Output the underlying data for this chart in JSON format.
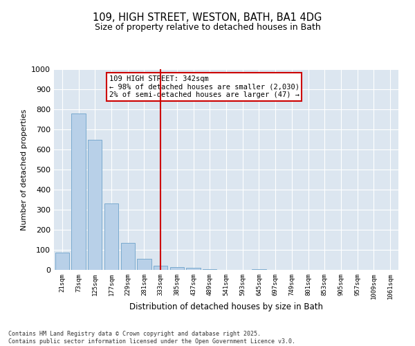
{
  "title_line1": "109, HIGH STREET, WESTON, BATH, BA1 4DG",
  "title_line2": "Size of property relative to detached houses in Bath",
  "xlabel": "Distribution of detached houses by size in Bath",
  "ylabel": "Number of detached properties",
  "bar_color": "#b8d0e8",
  "bar_edge_color": "#7aaacf",
  "bg_color": "#dce6f0",
  "grid_color": "#ffffff",
  "red_line_color": "#cc0000",
  "annotation_box_color": "#cc0000",
  "annotation_text_line1": "109 HIGH STREET: 342sqm",
  "annotation_text_line2": "← 98% of detached houses are smaller (2,030)",
  "annotation_text_line3": "2% of semi-detached houses are larger (47) →",
  "footer_line1": "Contains HM Land Registry data © Crown copyright and database right 2025.",
  "footer_line2": "Contains public sector information licensed under the Open Government Licence v3.0.",
  "categories": [
    "21sqm",
    "73sqm",
    "125sqm",
    "177sqm",
    "229sqm",
    "281sqm",
    "333sqm",
    "385sqm",
    "437sqm",
    "489sqm",
    "541sqm",
    "593sqm",
    "645sqm",
    "697sqm",
    "749sqm",
    "801sqm",
    "853sqm",
    "905sqm",
    "957sqm",
    "1009sqm",
    "1061sqm"
  ],
  "values": [
    85,
    780,
    650,
    330,
    135,
    55,
    20,
    15,
    10,
    5,
    0,
    0,
    5,
    0,
    0,
    0,
    0,
    0,
    0,
    0,
    0
  ],
  "red_line_index": 6,
  "ylim": [
    0,
    1000
  ],
  "yticks": [
    0,
    100,
    200,
    300,
    400,
    500,
    600,
    700,
    800,
    900,
    1000
  ],
  "fig_width": 6.0,
  "fig_height": 5.0,
  "fig_dpi": 100
}
